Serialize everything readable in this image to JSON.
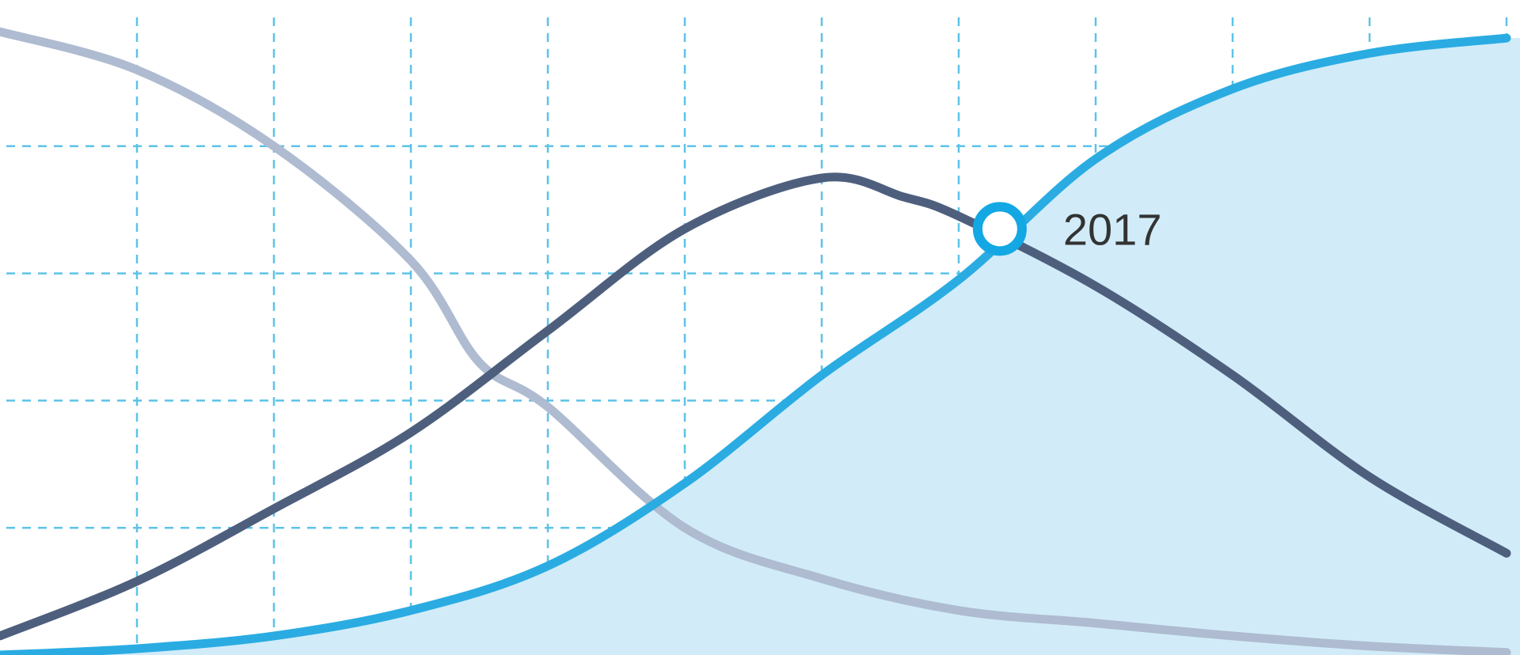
{
  "chart_data": {
    "type": "line",
    "title": "",
    "xlabel": "",
    "ylabel": "",
    "x_range": [
      0,
      11
    ],
    "y_range": [
      0,
      5
    ],
    "grid": true,
    "x_grid_lines": [
      1,
      2,
      3,
      4,
      5,
      6,
      7,
      8,
      9,
      10,
      11
    ],
    "y_grid_lines": [
      1,
      2,
      3,
      4
    ],
    "series": [
      {
        "color": "#aebbd0",
        "filled": false,
        "points": [
          [
            0,
            4.9
          ],
          [
            1,
            4.6
          ],
          [
            2,
            4.0
          ],
          [
            3,
            3.1
          ],
          [
            3.5,
            2.3
          ],
          [
            4,
            1.95
          ],
          [
            5,
            1.0
          ],
          [
            6,
            0.6
          ],
          [
            7,
            0.35
          ],
          [
            8,
            0.25
          ],
          [
            9,
            0.15
          ],
          [
            10,
            0.07
          ],
          [
            11,
            0.02
          ]
        ]
      },
      {
        "color": "#4e5f7e",
        "filled": false,
        "points": [
          [
            0,
            0.15
          ],
          [
            1,
            0.58
          ],
          [
            2,
            1.15
          ],
          [
            3,
            1.75
          ],
          [
            4,
            2.55
          ],
          [
            5,
            3.35
          ],
          [
            6,
            3.75
          ],
          [
            6.6,
            3.6
          ],
          [
            7,
            3.45
          ],
          [
            8,
            2.9
          ],
          [
            9,
            2.2
          ],
          [
            10,
            1.4
          ],
          [
            11,
            0.8
          ]
        ]
      },
      {
        "color": "#2aace2",
        "filled": true,
        "fill": "#d1ecf8",
        "points": [
          [
            0,
            0
          ],
          [
            1,
            0.05
          ],
          [
            2,
            0.15
          ],
          [
            3,
            0.35
          ],
          [
            4,
            0.7
          ],
          [
            5,
            1.35
          ],
          [
            6,
            2.2
          ],
          [
            7,
            2.95
          ],
          [
            8,
            3.9
          ],
          [
            9,
            4.45
          ],
          [
            10,
            4.73
          ],
          [
            11,
            4.85
          ]
        ]
      }
    ],
    "annotations": [
      {
        "label": "2017",
        "x": 7.3,
        "y": 3.35
      }
    ]
  }
}
